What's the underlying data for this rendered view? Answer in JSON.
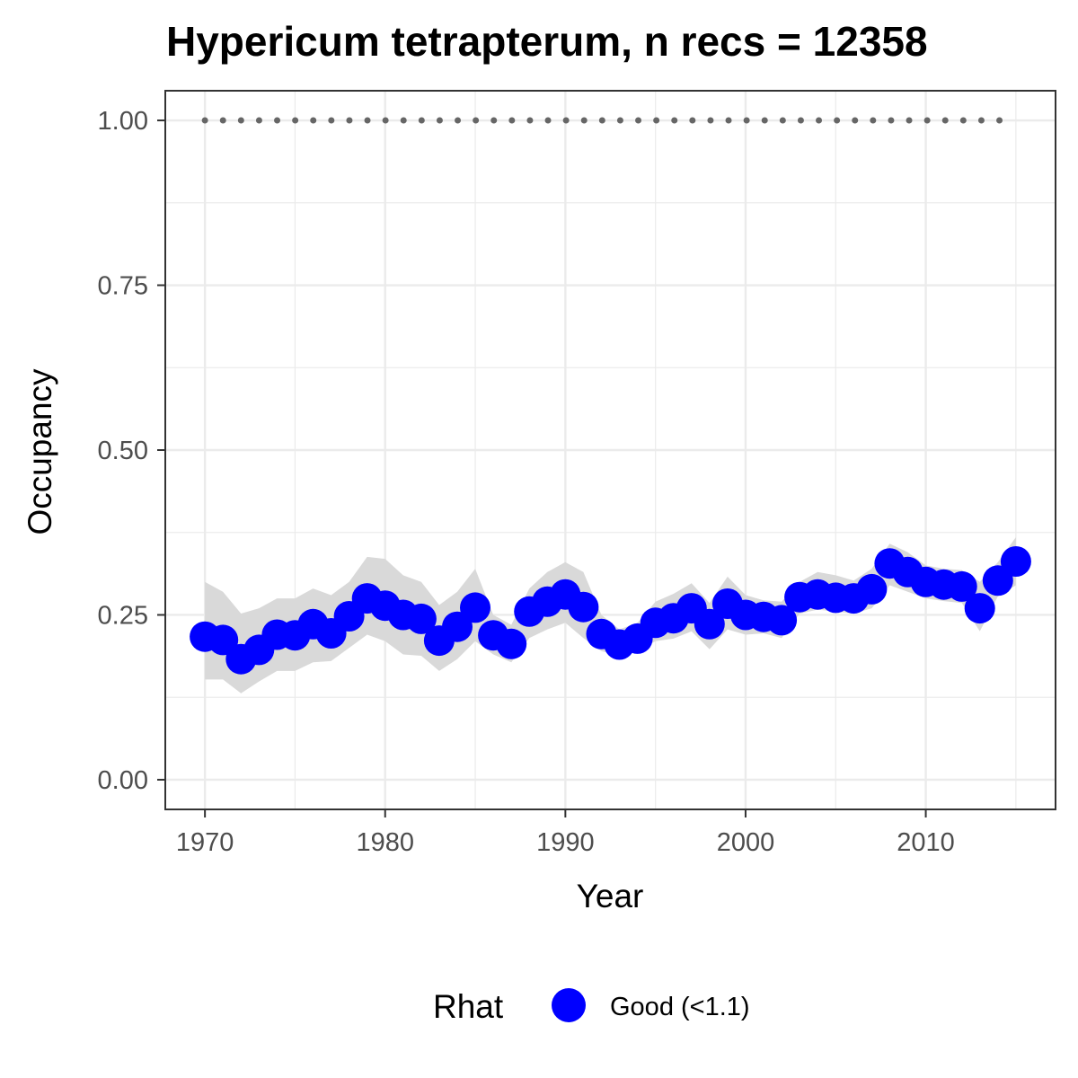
{
  "chart_data": {
    "type": "line",
    "title": "Hypericum tetrapterum, n recs = 12358",
    "xlabel": "Year",
    "ylabel": "Occupancy",
    "xlim": [
      1967.8,
      2017.2
    ],
    "ylim": [
      -0.045,
      1.045
    ],
    "x_ticks": [
      1970,
      1980,
      1990,
      2000,
      2010
    ],
    "x_tick_labels": [
      "1970",
      "1980",
      "1990",
      "2000",
      "2010"
    ],
    "y_ticks": [
      0,
      0.25,
      0.5,
      0.75,
      1.0
    ],
    "y_tick_labels": [
      "0.00",
      "0.25",
      "0.50",
      "0.75",
      "1.00"
    ],
    "grid": true,
    "legend": {
      "title": "Rhat",
      "position": "bottom",
      "entries": [
        {
          "label": "Good (<1.1)",
          "color": "#0000ff"
        }
      ]
    },
    "colors": {
      "points": "#0000ff",
      "ribbon": "#d9d9d9",
      "reference": "#666666",
      "grid": "#ebebeb",
      "border": "#333333"
    },
    "reference_line": {
      "y": 1.0,
      "style": "dotted"
    },
    "series": [
      {
        "name": "Good (<1.1)",
        "x": [
          1970,
          1971,
          1972,
          1973,
          1974,
          1975,
          1976,
          1977,
          1978,
          1979,
          1980,
          1981,
          1982,
          1983,
          1984,
          1985,
          1986,
          1987,
          1988,
          1989,
          1990,
          1991,
          1992,
          1993,
          1994,
          1995,
          1996,
          1997,
          1998,
          1999,
          2000,
          2001,
          2002,
          2003,
          2004,
          2005,
          2006,
          2007,
          2008,
          2009,
          2010,
          2011,
          2012,
          2013,
          2014,
          2015
        ],
        "y": [
          0.217,
          0.212,
          0.183,
          0.197,
          0.22,
          0.219,
          0.236,
          0.222,
          0.248,
          0.275,
          0.264,
          0.25,
          0.244,
          0.211,
          0.232,
          0.261,
          0.219,
          0.206,
          0.255,
          0.27,
          0.281,
          0.262,
          0.221,
          0.205,
          0.214,
          0.238,
          0.245,
          0.26,
          0.236,
          0.267,
          0.25,
          0.247,
          0.242,
          0.277,
          0.281,
          0.276,
          0.275,
          0.289,
          0.328,
          0.315,
          0.3,
          0.296,
          0.293,
          0.26,
          0.302,
          0.331
        ],
        "lower": [
          0.152,
          0.152,
          0.131,
          0.149,
          0.165,
          0.165,
          0.178,
          0.18,
          0.2,
          0.22,
          0.21,
          0.19,
          0.188,
          0.165,
          0.183,
          0.21,
          0.19,
          0.178,
          0.215,
          0.228,
          0.238,
          0.215,
          0.195,
          0.188,
          0.195,
          0.21,
          0.214,
          0.225,
          0.198,
          0.228,
          0.22,
          0.222,
          0.215,
          0.252,
          0.258,
          0.255,
          0.252,
          0.26,
          0.295,
          0.285,
          0.275,
          0.271,
          0.268,
          0.225,
          0.278,
          0.295
        ],
        "upper": [
          0.3,
          0.285,
          0.252,
          0.26,
          0.275,
          0.275,
          0.29,
          0.28,
          0.3,
          0.338,
          0.335,
          0.31,
          0.3,
          0.265,
          0.285,
          0.32,
          0.25,
          0.235,
          0.29,
          0.315,
          0.33,
          0.315,
          0.25,
          0.228,
          0.238,
          0.27,
          0.282,
          0.298,
          0.268,
          0.308,
          0.28,
          0.272,
          0.27,
          0.3,
          0.315,
          0.31,
          0.302,
          0.32,
          0.358,
          0.345,
          0.325,
          0.32,
          0.318,
          0.3,
          0.33,
          0.368
        ]
      }
    ]
  }
}
